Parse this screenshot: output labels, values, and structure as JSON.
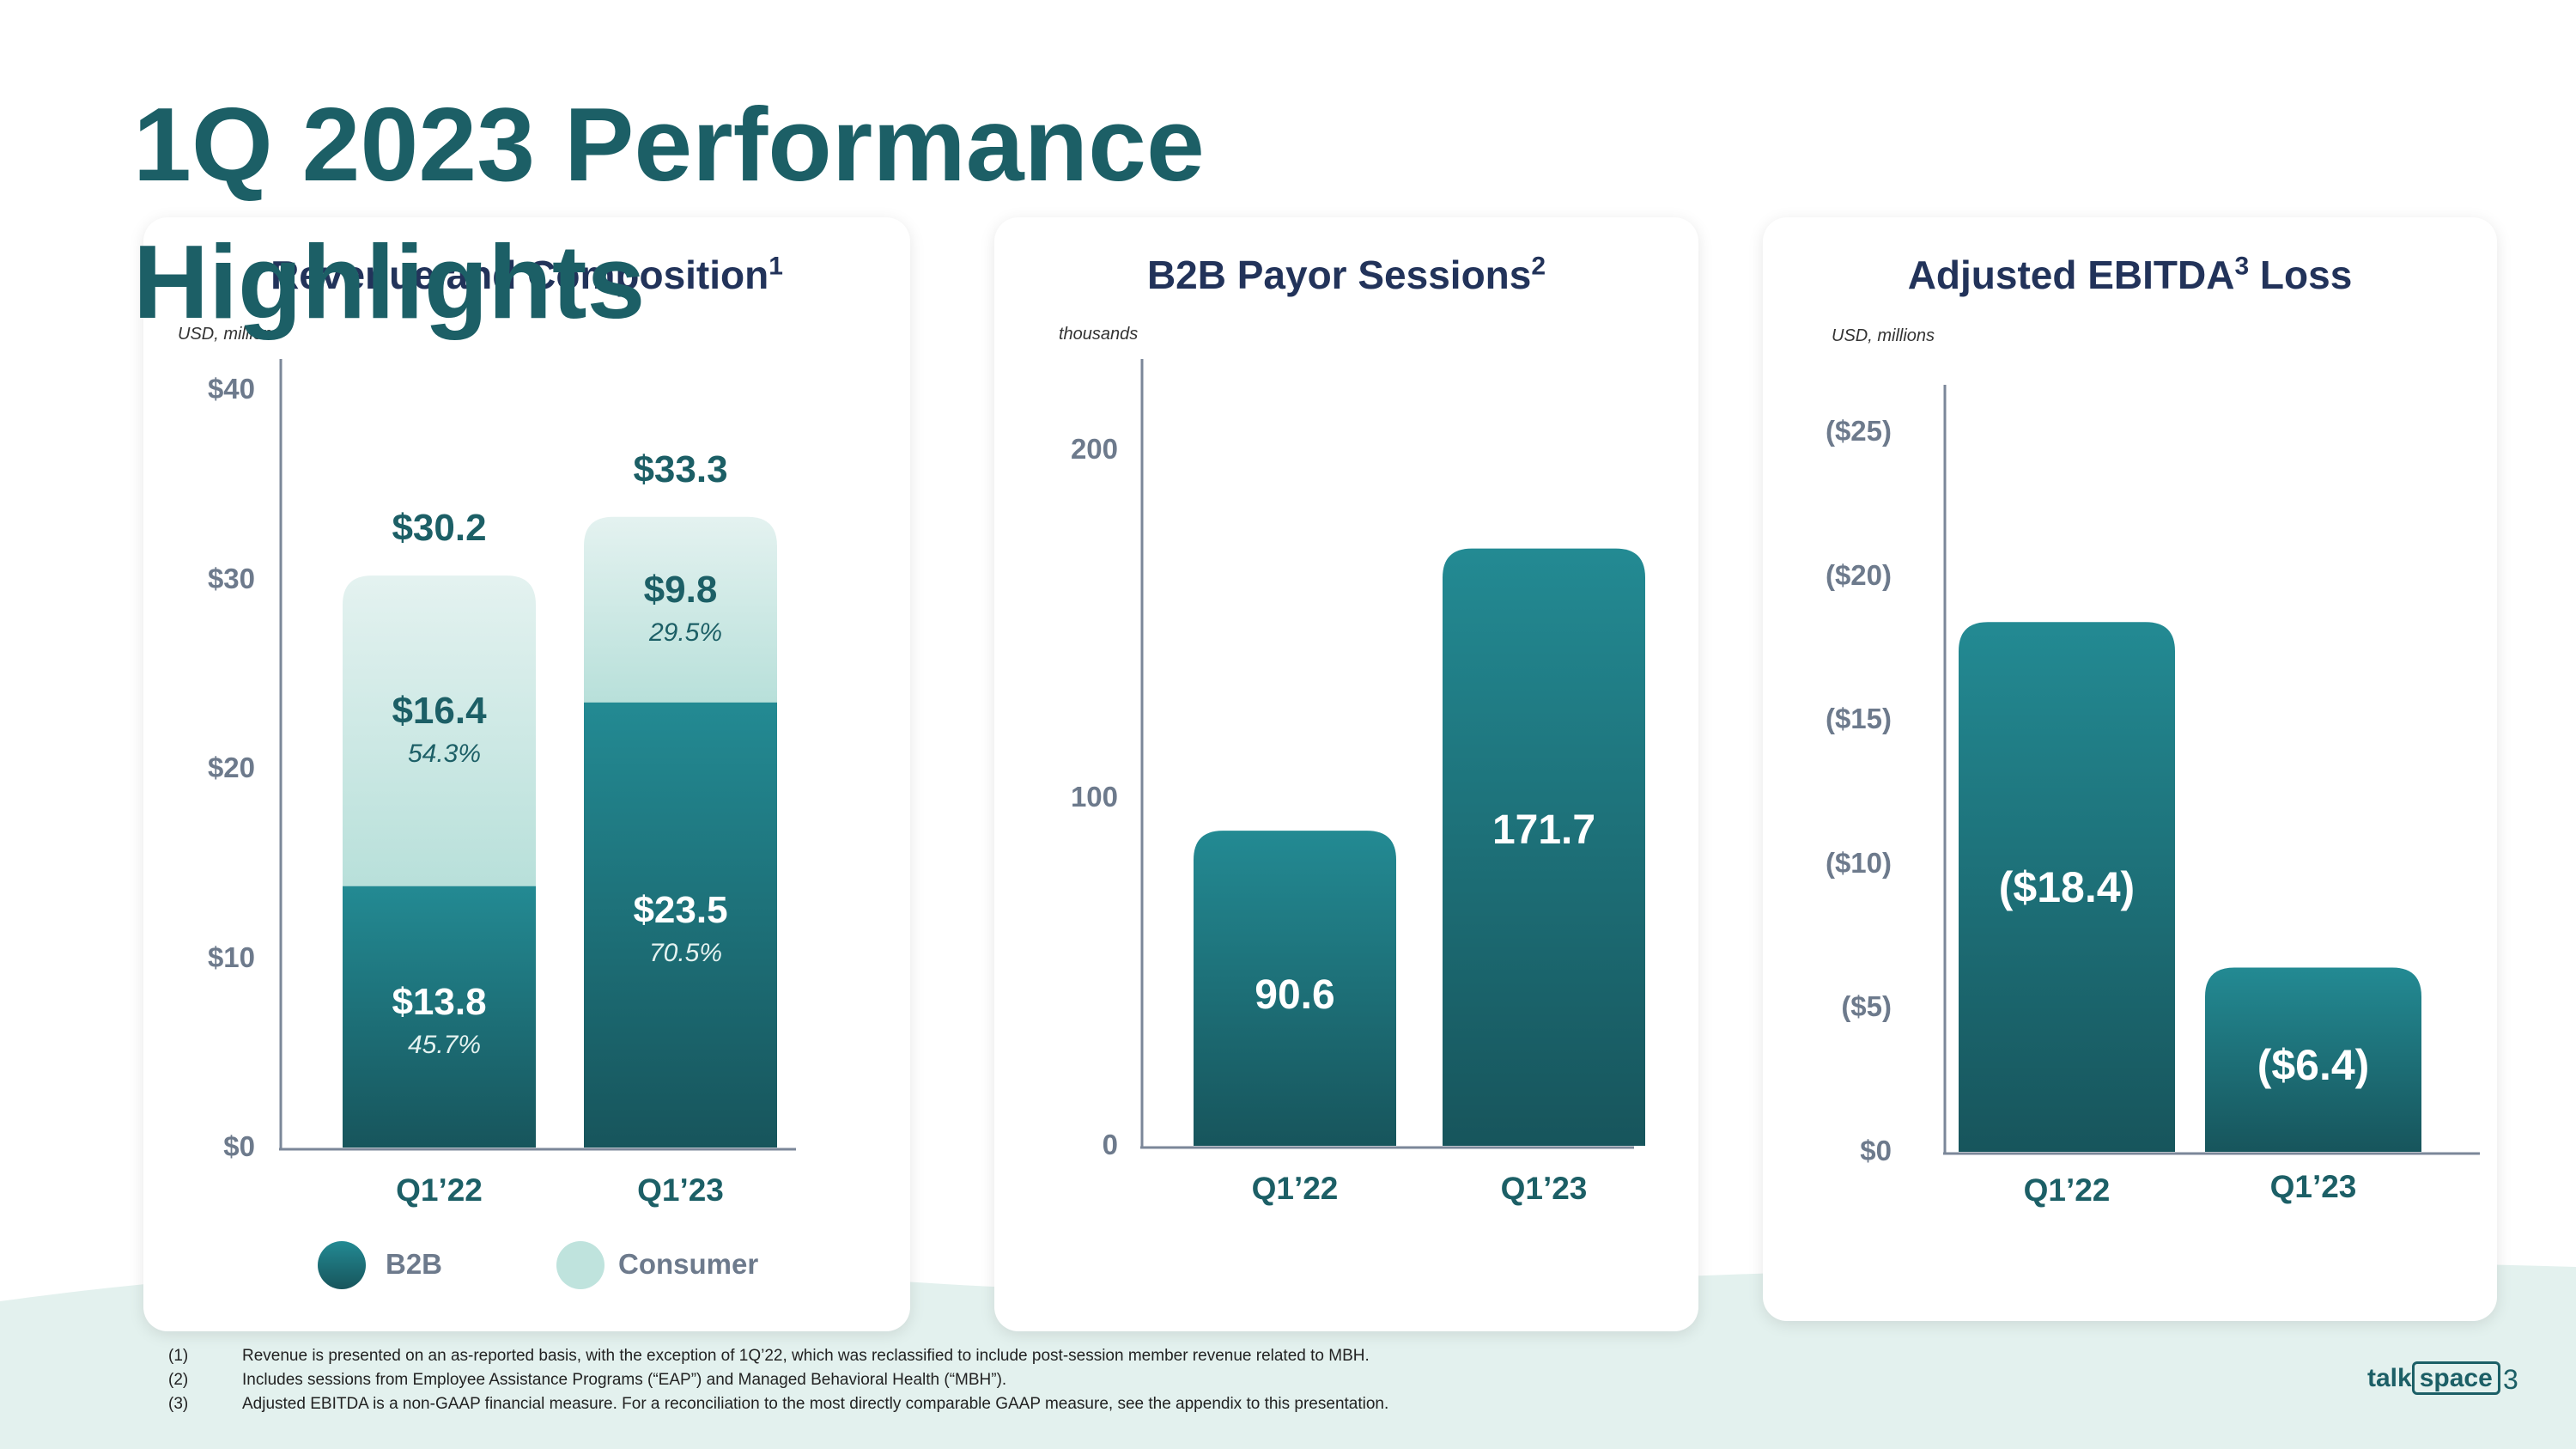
{
  "title": "1Q 2023 Performance Highlights",
  "colors": {
    "b2b_top": "#238a93",
    "b2b_bottom": "#17555c",
    "consumer_top": "#e4f2f0",
    "consumer_bottom": "#b8e0da"
  },
  "revenue": {
    "title": "Revenue and Composition",
    "title_sup": "1",
    "unit": "USD, millions",
    "ticks": [
      "$0",
      "$10",
      "$20",
      "$30",
      "$40"
    ],
    "legend": {
      "b2b": "B2B",
      "consumer": "Consumer"
    }
  },
  "sessions": {
    "title": "B2B Payor Sessions",
    "title_sup": "2",
    "unit": "thousands",
    "ticks": [
      "0",
      "100",
      "200"
    ]
  },
  "ebitda": {
    "title": "Adjusted EBITDA",
    "title_sup": "3",
    "title_suffix": " Loss",
    "unit": "USD, millions",
    "ticks": [
      "$0",
      "($5)",
      "($10)",
      "($15)",
      "($20)",
      "($25)"
    ]
  },
  "chart_data": [
    {
      "type": "bar",
      "title": "Revenue and Composition",
      "categories": [
        "Q1’22",
        "Q1’23"
      ],
      "series": [
        {
          "name": "B2B",
          "values": [
            13.8,
            23.5
          ],
          "labels": [
            "$13.8",
            "$23.5"
          ],
          "pct": [
            "45.7%",
            "70.5%"
          ]
        },
        {
          "name": "Consumer",
          "values": [
            16.4,
            9.8
          ],
          "labels": [
            "$16.4",
            "$9.8"
          ],
          "pct": [
            "54.3%",
            "29.5%"
          ]
        }
      ],
      "totals": [
        30.2,
        33.3
      ],
      "total_labels": [
        "$30.2",
        "$33.3"
      ],
      "ylim": [
        0,
        40
      ],
      "stacked": true
    },
    {
      "type": "bar",
      "title": "B2B Payor Sessions",
      "categories": [
        "Q1’22",
        "Q1’23"
      ],
      "values": [
        90.6,
        171.7
      ],
      "labels": [
        "90.6",
        "171.7"
      ],
      "ylim": [
        0,
        200
      ]
    },
    {
      "type": "bar",
      "title": "Adjusted EBITDA Loss",
      "categories": [
        "Q1’22",
        "Q1’23"
      ],
      "values": [
        -18.4,
        -6.4
      ],
      "labels": [
        "($18.4)",
        "($6.4)"
      ],
      "ylim": [
        0,
        -25
      ]
    }
  ],
  "footnotes": [
    {
      "num": "(1)",
      "text": "Revenue is presented on an as-reported basis, with the exception of 1Q’22, which was reclassified to include post-session member revenue related to MBH."
    },
    {
      "num": "(2)",
      "text": "Includes sessions from Employee Assistance Programs (“EAP”) and Managed Behavioral Health (“MBH”)."
    },
    {
      "num": "(3)",
      "text": "Adjusted EBITDA is a non-GAAP financial measure. For a reconciliation to the most directly comparable GAAP measure, see the appendix to this presentation."
    }
  ],
  "logo": {
    "left": "talk",
    "right": "space"
  },
  "page_number": "3"
}
